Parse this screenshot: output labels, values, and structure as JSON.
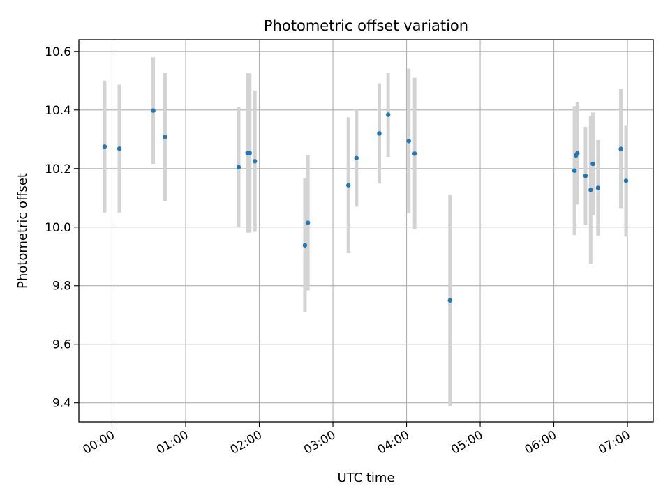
{
  "chart_data": {
    "type": "scatter",
    "title": "Photometric offset variation",
    "xlabel": "UTC time",
    "ylabel": "Photometric offset",
    "x_unit": "hours UTC",
    "xlim": [
      -0.45,
      7.35
    ],
    "ylim": [
      9.335,
      10.64
    ],
    "grid": true,
    "legend": "none",
    "x_ticks": [
      {
        "value": 0,
        "label": "00:00"
      },
      {
        "value": 1,
        "label": "01:00"
      },
      {
        "value": 2,
        "label": "02:00"
      },
      {
        "value": 3,
        "label": "03:00"
      },
      {
        "value": 4,
        "label": "04:00"
      },
      {
        "value": 5,
        "label": "05:00"
      },
      {
        "value": 6,
        "label": "06:00"
      },
      {
        "value": 7,
        "label": "07:00"
      }
    ],
    "y_ticks": [
      {
        "value": 9.4,
        "label": "9.4"
      },
      {
        "value": 9.6,
        "label": "9.6"
      },
      {
        "value": 9.8,
        "label": "9.8"
      },
      {
        "value": 10.0,
        "label": "10.0"
      },
      {
        "value": 10.2,
        "label": "10.2"
      },
      {
        "value": 10.4,
        "label": "10.4"
      },
      {
        "value": 10.6,
        "label": "10.6"
      }
    ],
    "series": [
      {
        "name": "offset",
        "color": "#1f77b4",
        "errorbar_color": "#d3d3d3",
        "points": [
          {
            "x": -0.1,
            "y": 10.275,
            "err": 0.225
          },
          {
            "x": 0.1,
            "y": 10.268,
            "err": 0.218
          },
          {
            "x": 0.56,
            "y": 10.398,
            "err": 0.182
          },
          {
            "x": 0.72,
            "y": 10.308,
            "err": 0.218
          },
          {
            "x": 1.72,
            "y": 10.205,
            "err": 0.205
          },
          {
            "x": 1.84,
            "y": 10.253,
            "err": 0.272
          },
          {
            "x": 1.87,
            "y": 10.253,
            "err": 0.272
          },
          {
            "x": 1.94,
            "y": 10.225,
            "err": 0.241
          },
          {
            "x": 2.62,
            "y": 9.938,
            "err": 0.229
          },
          {
            "x": 2.66,
            "y": 10.015,
            "err": 0.231
          },
          {
            "x": 3.21,
            "y": 10.143,
            "err": 0.232
          },
          {
            "x": 3.32,
            "y": 10.236,
            "err": 0.166
          },
          {
            "x": 3.63,
            "y": 10.32,
            "err": 0.171
          },
          {
            "x": 3.75,
            "y": 10.384,
            "err": 0.144
          },
          {
            "x": 4.03,
            "y": 10.294,
            "err": 0.247
          },
          {
            "x": 4.11,
            "y": 10.251,
            "err": 0.259
          },
          {
            "x": 4.59,
            "y": 9.75,
            "err": 0.36
          },
          {
            "x": 6.28,
            "y": 10.193,
            "err": 0.22
          },
          {
            "x": 6.3,
            "y": 10.245,
            "err": 0.167
          },
          {
            "x": 6.32,
            "y": 10.252,
            "err": 0.175
          },
          {
            "x": 6.43,
            "y": 10.175,
            "err": 0.167
          },
          {
            "x": 6.5,
            "y": 10.127,
            "err": 0.252
          },
          {
            "x": 6.53,
            "y": 10.216,
            "err": 0.175
          },
          {
            "x": 6.6,
            "y": 10.134,
            "err": 0.163
          },
          {
            "x": 6.91,
            "y": 10.267,
            "err": 0.204
          },
          {
            "x": 6.98,
            "y": 10.158,
            "err": 0.19
          }
        ]
      }
    ]
  }
}
